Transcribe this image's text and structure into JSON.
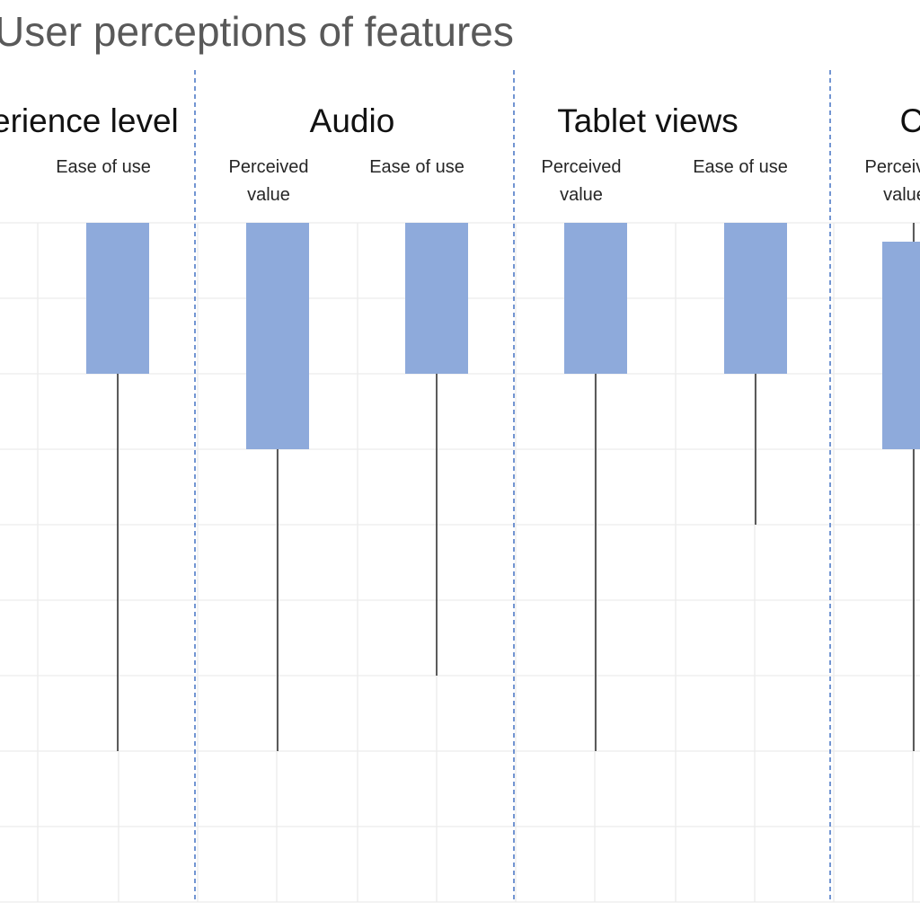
{
  "title": "User perceptions of features",
  "groups": [
    {
      "label": "Experience level"
    },
    {
      "label": "Audio"
    },
    {
      "label": "Tablet views"
    },
    {
      "label": "Circles"
    }
  ],
  "sublabels": {
    "ease_of_use": "Ease of use",
    "perceived_value": "Perceived\nvalue"
  },
  "colors": {
    "box": "#8eaadb",
    "whisker": "#1a1a1a",
    "divider": "#4472c4",
    "grid": "#ececec"
  },
  "chart_data": {
    "type": "bar",
    "title": "User perceptions of features",
    "groups": [
      "Experience level",
      "Audio",
      "Tablet views",
      "Circles"
    ],
    "series_labels": [
      "Perceived value",
      "Ease of use"
    ],
    "scale": {
      "top": 0,
      "bottom": 9,
      "direction": "down"
    },
    "gridlines": true,
    "items": [
      {
        "group": "Experience level",
        "label": "Ease of use",
        "box": [
          0,
          2
        ],
        "whisker_end": 7
      },
      {
        "group": "Audio",
        "label": "Perceived value",
        "box": [
          0,
          3
        ],
        "whisker_end": 7
      },
      {
        "group": "Audio",
        "label": "Ease of use",
        "box": [
          0,
          2
        ],
        "whisker_end": 6
      },
      {
        "group": "Tablet views",
        "label": "Perceived value",
        "box": [
          0,
          2
        ],
        "whisker_end": 7
      },
      {
        "group": "Tablet views",
        "label": "Ease of use",
        "box": [
          0,
          2
        ],
        "whisker_end": 4
      },
      {
        "group": "Circles",
        "label": "Perceived value",
        "box": [
          0.25,
          3
        ],
        "whisker_start": 0,
        "whisker_end": 7
      }
    ]
  }
}
